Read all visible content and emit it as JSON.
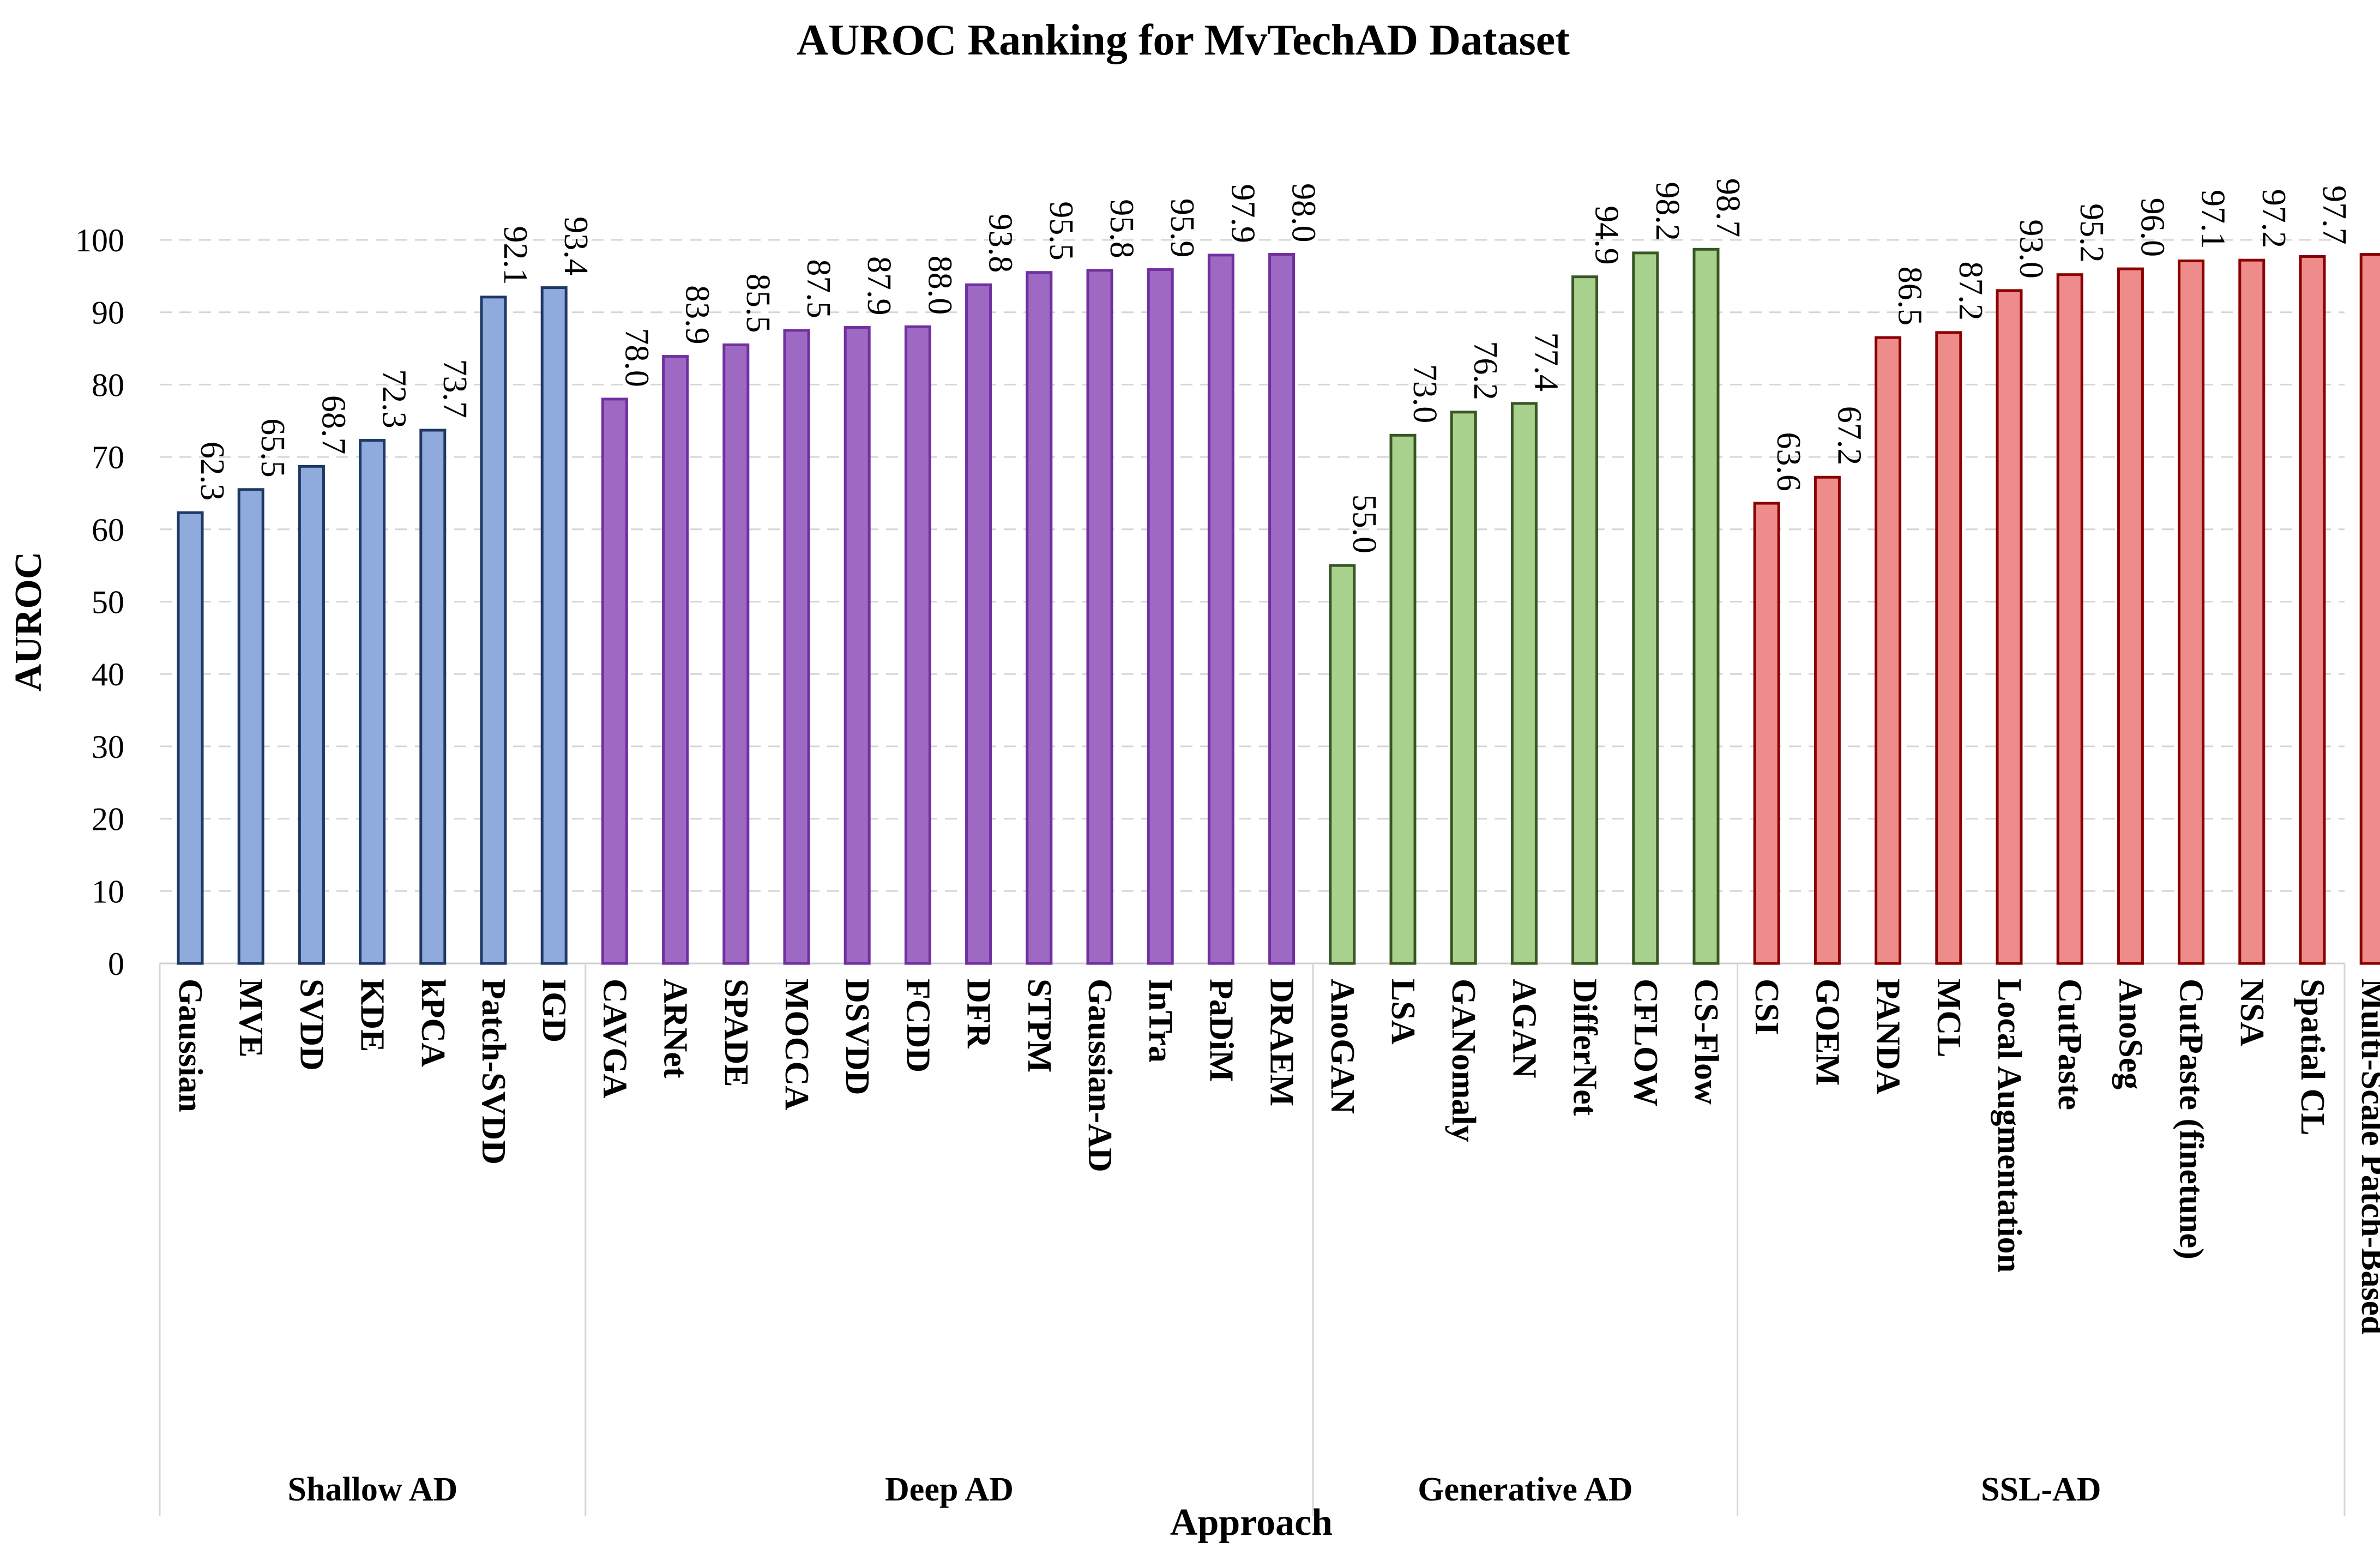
{
  "chart_data": {
    "type": "bar",
    "title": "AUROC Ranking for MvTechAD Dataset",
    "xlabel": "Approach",
    "ylabel": "AUROC",
    "ylim": [
      0,
      100
    ],
    "yticks": [
      0,
      10,
      20,
      30,
      40,
      50,
      60,
      70,
      80,
      90,
      100
    ],
    "grid": true,
    "groups": [
      {
        "name": "Shallow AD",
        "fill": "#8faadc",
        "stroke": "#1f3864",
        "categories": [
          "Gaussian",
          "MVE",
          "SVDD",
          "KDE",
          "kPCA",
          "Patch-SVDD",
          "IGD"
        ],
        "values": [
          62.3,
          65.5,
          68.7,
          72.3,
          73.7,
          92.1,
          93.4
        ]
      },
      {
        "name": "Deep AD",
        "fill": "#9e69c2",
        "stroke": "#7030a0",
        "categories": [
          "CAVGA",
          "ARNet",
          "SPADE",
          "MOCCA",
          "DSVDD",
          "FCDD",
          "DFR",
          "STPM",
          "Gaussian-AD",
          "InTra",
          "PaDiM",
          "DRAEM"
        ],
        "values": [
          78.0,
          83.9,
          85.5,
          87.5,
          87.9,
          88.0,
          93.8,
          95.5,
          95.8,
          95.9,
          97.9,
          98.0
        ]
      },
      {
        "name": "Generative AD",
        "fill": "#a9d18e",
        "stroke": "#375623",
        "categories": [
          "AnoGAN",
          "LSA",
          "GANomaly",
          "AGAN",
          "DifferNet",
          "CFLOW",
          "CS-Flow"
        ],
        "values": [
          55.0,
          73.0,
          76.2,
          77.4,
          94.9,
          98.2,
          98.7
        ]
      },
      {
        "name": "SSL-AD",
        "fill": "#ee8c8c",
        "stroke": "#8b0000",
        "categories": [
          "CSI",
          "GOEM",
          "PANDA",
          "MCL",
          "Local Augmentation",
          "CutPaste",
          "AnoSeg",
          "CutPaste (finetune)",
          "NSA",
          "Spatial CL",
          "Multi-Scale Patch-Based"
        ],
        "values": [
          63.6,
          67.2,
          86.5,
          87.2,
          93.0,
          95.2,
          96.0,
          97.1,
          97.2,
          97.7,
          98.0
        ]
      }
    ]
  }
}
